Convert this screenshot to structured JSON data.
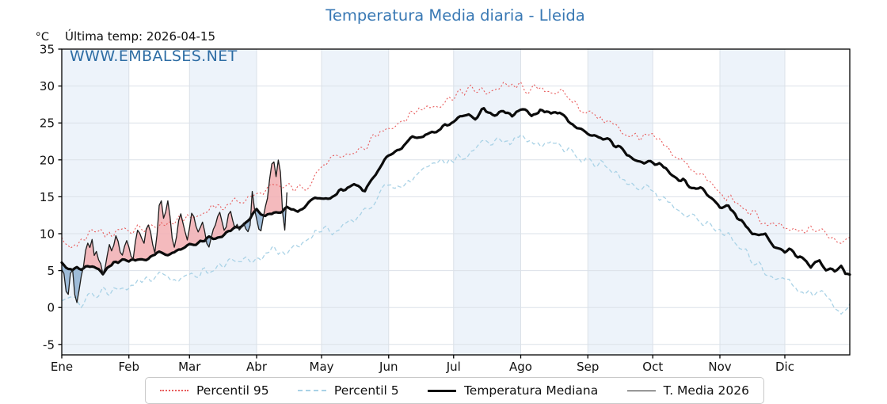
{
  "title": "Temperatura Media diaria - Lleida",
  "subtitle": "Última temp: 2026-04-15",
  "watermark": "WWW.EMBALSES.NET",
  "y_axis_unit": "°C",
  "legend": {
    "items": [
      {
        "label": "Percentil 95"
      },
      {
        "label": "Percentil 5"
      },
      {
        "label": "Temperatura Mediana"
      },
      {
        "label": "T. Media 2026"
      }
    ]
  },
  "colors": {
    "title_blue": "#3878b4",
    "watermark_blue": "#2e6da4",
    "p95_red": "#e85c5c",
    "p5_blue": "#a9d2e6",
    "median_black": "#0b0b0b",
    "t2026_black": "#1c1c1c",
    "fill_above": "#f2aeb2",
    "fill_below": "#8fb2d2",
    "month_band": "#edf3fa",
    "grid": "#dbe1e8",
    "frame": "#000000"
  },
  "chart_data": {
    "type": "line",
    "title": "Temperatura Media diaria - Lleida",
    "x_ticks": [
      "Ene",
      "Feb",
      "Mar",
      "Abr",
      "May",
      "Jun",
      "Jul",
      "Ago",
      "Sep",
      "Oct",
      "Nov",
      "Dic"
    ],
    "month_lengths": [
      31,
      28,
      31,
      30,
      31,
      30,
      31,
      31,
      30,
      31,
      30,
      31
    ],
    "shaded_month_indices": [
      0,
      2,
      4,
      6,
      8,
      10
    ],
    "y_ticks": [
      35,
      30,
      25,
      20,
      15,
      10,
      5,
      0,
      -5
    ],
    "ylim": [
      -6.4,
      35
    ],
    "x_range_days": [
      1,
      365
    ],
    "last_date": "2026-04-15",
    "grid": true,
    "legend_position": "bottom",
    "series": [
      {
        "name": "Percentil 95",
        "style": "dotted",
        "noise": 0.6,
        "anchors": [
          [
            1,
            9.0
          ],
          [
            8,
            8.2
          ],
          [
            15,
            10.2
          ],
          [
            22,
            9.6
          ],
          [
            32,
            10.6
          ],
          [
            40,
            11.2
          ],
          [
            50,
            11.6
          ],
          [
            60,
            12.4
          ],
          [
            70,
            13.2
          ],
          [
            80,
            14.2
          ],
          [
            91,
            15.2
          ],
          [
            98,
            16.0
          ],
          [
            105,
            16.3
          ],
          [
            112,
            16.0
          ],
          [
            120,
            18.8
          ],
          [
            130,
            20.4
          ],
          [
            141,
            21.6
          ],
          [
            152,
            24.6
          ],
          [
            160,
            25.8
          ],
          [
            166,
            26.9
          ],
          [
            172,
            27.3
          ],
          [
            182,
            28.7
          ],
          [
            190,
            29.5
          ],
          [
            196,
            29.2
          ],
          [
            205,
            29.9
          ],
          [
            213,
            29.8
          ],
          [
            222,
            29.3
          ],
          [
            227,
            29.6
          ],
          [
            235,
            28.4
          ],
          [
            244,
            26.4
          ],
          [
            252,
            25.4
          ],
          [
            258,
            24.2
          ],
          [
            265,
            23.2
          ],
          [
            274,
            22.9
          ],
          [
            281,
            21.3
          ],
          [
            288,
            19.7
          ],
          [
            295,
            18.4
          ],
          [
            305,
            15.4
          ],
          [
            312,
            14.2
          ],
          [
            318,
            13.0
          ],
          [
            328,
            11.1
          ],
          [
            335,
            10.6
          ],
          [
            342,
            10.0
          ],
          [
            348,
            10.7
          ],
          [
            355,
            9.9
          ],
          [
            361,
            9.0
          ],
          [
            365,
            10.2
          ]
        ]
      },
      {
        "name": "Percentil 5",
        "style": "dashed",
        "noise": 0.55,
        "anchors": [
          [
            1,
            1.7
          ],
          [
            6,
            0.8
          ],
          [
            10,
            0.7
          ],
          [
            15,
            1.9
          ],
          [
            22,
            2.1
          ],
          [
            32,
            2.6
          ],
          [
            40,
            3.5
          ],
          [
            46,
            4.6
          ],
          [
            52,
            3.8
          ],
          [
            60,
            4.4
          ],
          [
            70,
            5.3
          ],
          [
            80,
            5.9
          ],
          [
            91,
            6.6
          ],
          [
            98,
            7.6
          ],
          [
            105,
            7.1
          ],
          [
            112,
            8.2
          ],
          [
            120,
            10.6
          ],
          [
            126,
            10.0
          ],
          [
            135,
            12.2
          ],
          [
            141,
            12.9
          ],
          [
            152,
            16.8
          ],
          [
            158,
            16.4
          ],
          [
            166,
            18.2
          ],
          [
            172,
            19.0
          ],
          [
            182,
            20.2
          ],
          [
            190,
            21.2
          ],
          [
            196,
            22.4
          ],
          [
            203,
            23.0
          ],
          [
            208,
            22.3
          ],
          [
            213,
            23.2
          ],
          [
            218,
            22.0
          ],
          [
            227,
            22.6
          ],
          [
            235,
            21.2
          ],
          [
            244,
            19.8
          ],
          [
            252,
            19.2
          ],
          [
            258,
            17.8
          ],
          [
            265,
            16.6
          ],
          [
            274,
            16.0
          ],
          [
            281,
            14.2
          ],
          [
            288,
            12.6
          ],
          [
            295,
            11.8
          ],
          [
            305,
            10.6
          ],
          [
            312,
            8.6
          ],
          [
            318,
            7.0
          ],
          [
            328,
            4.5
          ],
          [
            335,
            3.9
          ],
          [
            342,
            2.5
          ],
          [
            348,
            1.6
          ],
          [
            352,
            2.2
          ],
          [
            358,
            0.3
          ],
          [
            361,
            -0.6
          ],
          [
            365,
            0.5
          ]
        ]
      },
      {
        "name": "Temperatura Mediana",
        "style": "solid-thick",
        "noise": 0.3,
        "anchors": [
          [
            1,
            5.8
          ],
          [
            4,
            5.2
          ],
          [
            10,
            5.5
          ],
          [
            15,
            5.6
          ],
          [
            20,
            4.6
          ],
          [
            25,
            5.9
          ],
          [
            32,
            6.3
          ],
          [
            40,
            6.7
          ],
          [
            46,
            7.3
          ],
          [
            52,
            7.3
          ],
          [
            60,
            8.4
          ],
          [
            68,
            9.2
          ],
          [
            75,
            9.8
          ],
          [
            82,
            10.9
          ],
          [
            88,
            11.8
          ],
          [
            91,
            13.0
          ],
          [
            95,
            12.4
          ],
          [
            100,
            12.9
          ],
          [
            105,
            13.3
          ],
          [
            112,
            13.1
          ],
          [
            118,
            14.9
          ],
          [
            124,
            14.6
          ],
          [
            130,
            15.8
          ],
          [
            136,
            16.4
          ],
          [
            141,
            16.0
          ],
          [
            147,
            18.6
          ],
          [
            152,
            20.4
          ],
          [
            158,
            21.8
          ],
          [
            163,
            23.2
          ],
          [
            168,
            22.9
          ],
          [
            174,
            24.0
          ],
          [
            182,
            25.3
          ],
          [
            187,
            26.3
          ],
          [
            192,
            25.8
          ],
          [
            196,
            26.9
          ],
          [
            200,
            26.1
          ],
          [
            205,
            26.8
          ],
          [
            209,
            26.2
          ],
          [
            213,
            26.8
          ],
          [
            218,
            26.1
          ],
          [
            222,
            26.6
          ],
          [
            227,
            26.3
          ],
          [
            231,
            26.5
          ],
          [
            235,
            25.3
          ],
          [
            240,
            24.3
          ],
          [
            244,
            23.4
          ],
          [
            250,
            23.0
          ],
          [
            255,
            22.3
          ],
          [
            258,
            21.7
          ],
          [
            262,
            20.6
          ],
          [
            265,
            20.4
          ],
          [
            270,
            19.7
          ],
          [
            274,
            19.8
          ],
          [
            278,
            19.2
          ],
          [
            281,
            18.6
          ],
          [
            285,
            17.6
          ],
          [
            288,
            17.2
          ],
          [
            292,
            16.2
          ],
          [
            296,
            16.1
          ],
          [
            300,
            15.2
          ],
          [
            305,
            13.6
          ],
          [
            309,
            13.8
          ],
          [
            313,
            12.2
          ],
          [
            317,
            11.0
          ],
          [
            320,
            10.2
          ],
          [
            323,
            9.8
          ],
          [
            326,
            10.0
          ],
          [
            330,
            8.3
          ],
          [
            335,
            7.5
          ],
          [
            337,
            8.0
          ],
          [
            341,
            7.0
          ],
          [
            344,
            6.2
          ],
          [
            347,
            5.5
          ],
          [
            351,
            6.8
          ],
          [
            354,
            5.2
          ],
          [
            358,
            5.0
          ],
          [
            361,
            5.6
          ],
          [
            363,
            4.6
          ],
          [
            365,
            4.8
          ]
        ]
      },
      {
        "name": "T. Media 2026",
        "style": "solid-thin",
        "noise": 0.12,
        "start_day": 1,
        "end_day": 105,
        "values": [
          5.2,
          4.6,
          2.2,
          1.8,
          4.6,
          5.0,
          1.6,
          0.6,
          2.4,
          4.2,
          5.4,
          7.8,
          8.8,
          8.2,
          9.3,
          7.0,
          7.5,
          6.4,
          5.9,
          4.6,
          5.3,
          6.9,
          8.4,
          7.6,
          8.3,
          9.6,
          8.9,
          7.4,
          7.0,
          8.3,
          9.1,
          8.2,
          7.0,
          6.7,
          8.9,
          10.4,
          10.0,
          9.2,
          8.6,
          10.6,
          11.2,
          10.2,
          8.4,
          7.3,
          9.8,
          13.8,
          14.5,
          12.2,
          13.1,
          14.6,
          12.4,
          9.3,
          8.1,
          9.6,
          11.8,
          12.7,
          11.4,
          10.2,
          9.1,
          10.7,
          12.8,
          12.4,
          11.0,
          10.3,
          10.9,
          11.5,
          10.2,
          8.5,
          8.1,
          9.5,
          10.7,
          11.3,
          12.4,
          12.9,
          11.6,
          10.5,
          11.0,
          12.7,
          13.1,
          11.8,
          10.7,
          11.3,
          10.5,
          10.9,
          11.5,
          10.7,
          10.3,
          11.1,
          15.7,
          13.4,
          11.9,
          10.5,
          10.3,
          12.1,
          13.7,
          14.9,
          17.5,
          19.6,
          19.8,
          17.7,
          19.9,
          18.3,
          12.9,
          10.5,
          15.5
        ]
      }
    ]
  }
}
